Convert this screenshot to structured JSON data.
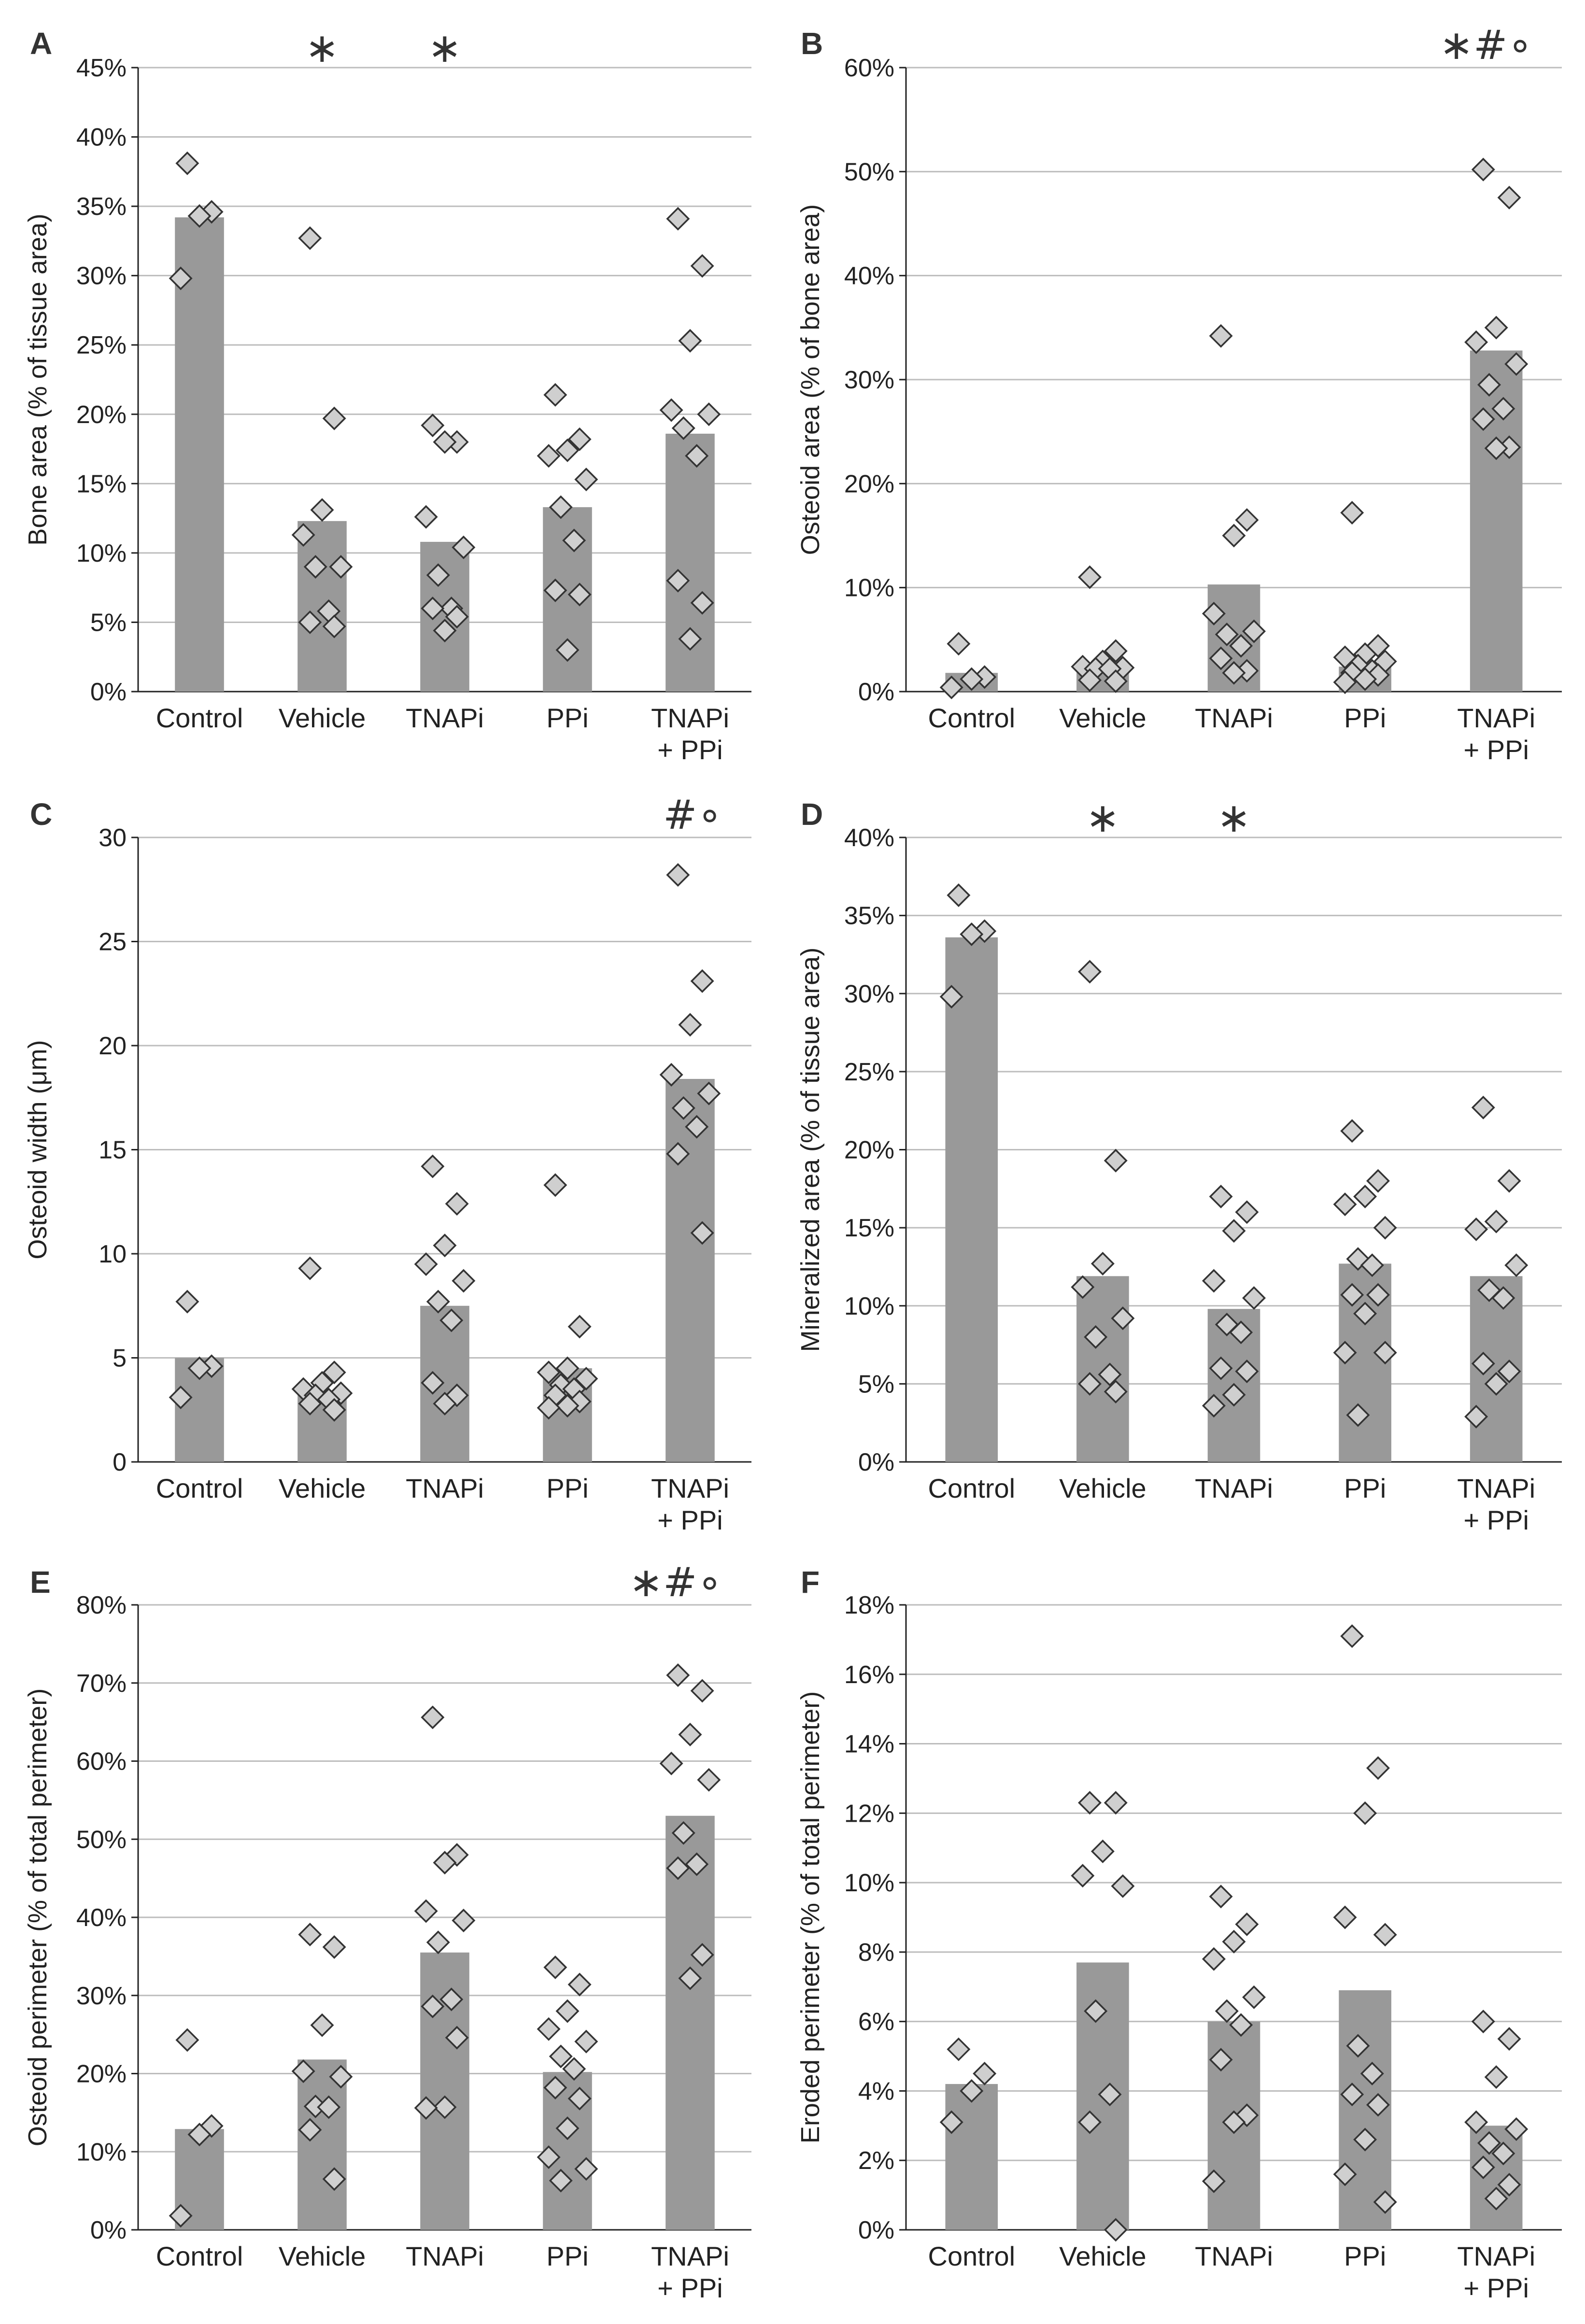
{
  "chart_data": [
    {
      "panel": "A",
      "type": "bar",
      "ylabel": "Bone area (% of tissue area)",
      "ylim": [
        0,
        45
      ],
      "yticks": [
        0,
        5,
        10,
        15,
        20,
        25,
        30,
        35,
        40,
        45
      ],
      "tick_labels": [
        "0%",
        "5%",
        "10%",
        "15%",
        "20%",
        "25%",
        "30%",
        "35%",
        "40%",
        "45%"
      ],
      "grid": true,
      "categories": [
        {
          "name": "Control",
          "mean": 34.2,
          "points": [
            38.1,
            34.6,
            34.3,
            29.8
          ],
          "sig": ""
        },
        {
          "name": "Vehicle",
          "mean": 12.3,
          "points": [
            32.7,
            19.7,
            13.1,
            11.3,
            9.0,
            9.0,
            5.8,
            5.0,
            4.7
          ],
          "sig": "*"
        },
        {
          "name": "TNAPi",
          "mean": 10.8,
          "points": [
            19.2,
            18.0,
            18.0,
            12.6,
            10.4,
            8.4,
            6.0,
            6.0,
            5.4,
            4.4
          ],
          "sig": "*"
        },
        {
          "name": "PPi",
          "mean": 13.3,
          "points": [
            21.4,
            18.2,
            17.4,
            17.0,
            15.3,
            13.3,
            10.9,
            7.3,
            7.0,
            3.0
          ],
          "sig": ""
        },
        {
          "name": "TNAPi\n+ PPi",
          "mean": 18.6,
          "points": [
            34.1,
            30.7,
            25.3,
            20.3,
            20.0,
            19.0,
            17.0,
            8.0,
            6.4,
            3.8
          ],
          "sig": ""
        }
      ],
      "panel_sig": ""
    },
    {
      "panel": "B",
      "type": "bar",
      "ylabel": "Osteoid area (% of bone area)",
      "ylim": [
        0,
        60
      ],
      "yticks": [
        0,
        10,
        20,
        30,
        40,
        50,
        60
      ],
      "tick_labels": [
        "0%",
        "10%",
        "20%",
        "30%",
        "40%",
        "50%",
        "60%"
      ],
      "grid": true,
      "categories": [
        {
          "name": "Control",
          "mean": 1.8,
          "points": [
            4.6,
            1.4,
            1.2,
            0.4
          ],
          "sig": ""
        },
        {
          "name": "Vehicle",
          "mean": 2.4,
          "points": [
            11.0,
            3.9,
            2.9,
            2.4,
            2.3,
            2.2,
            2.2,
            1.1,
            1.0
          ],
          "sig": ""
        },
        {
          "name": "TNAPi",
          "mean": 10.3,
          "points": [
            34.2,
            16.5,
            15.0,
            7.5,
            5.8,
            5.5,
            4.4,
            3.2,
            2.0,
            1.8
          ],
          "sig": ""
        },
        {
          "name": "PPi",
          "mean": 2.4,
          "points": [
            17.2,
            4.4,
            3.6,
            3.3,
            2.9,
            2.5,
            2.0,
            1.8,
            1.6,
            1.2,
            0.9
          ],
          "sig": ""
        },
        {
          "name": "TNAPi\n+ PPi",
          "mean": 32.8,
          "points": [
            50.2,
            47.5,
            35.0,
            33.6,
            31.5,
            29.5,
            27.2,
            26.2,
            23.5,
            23.4
          ],
          "sig": ""
        }
      ],
      "panel_sig": "∗#∘"
    },
    {
      "panel": "C",
      "type": "bar",
      "ylabel": "Osteoid width (μm)",
      "ylim": [
        0,
        30
      ],
      "yticks": [
        0,
        5,
        10,
        15,
        20,
        25,
        30
      ],
      "tick_labels": [
        "0",
        "5",
        "10",
        "15",
        "20",
        "25",
        "30"
      ],
      "grid": true,
      "categories": [
        {
          "name": "Control",
          "mean": 5.0,
          "points": [
            7.7,
            4.6,
            4.5,
            3.1
          ],
          "sig": ""
        },
        {
          "name": "Vehicle",
          "mean": 3.4,
          "points": [
            9.3,
            4.3,
            3.8,
            3.5,
            3.3,
            3.2,
            3.0,
            2.8,
            2.5
          ],
          "sig": ""
        },
        {
          "name": "TNAPi",
          "mean": 7.5,
          "points": [
            14.2,
            12.4,
            10.4,
            9.5,
            8.7,
            7.7,
            6.8,
            3.8,
            3.2,
            2.8
          ],
          "sig": ""
        },
        {
          "name": "PPi",
          "mean": 4.5,
          "points": [
            13.3,
            6.5,
            4.5,
            4.3,
            4.0,
            3.7,
            3.5,
            3.2,
            2.9,
            2.7,
            2.6
          ],
          "sig": ""
        },
        {
          "name": "TNAPi\n+ PPi",
          "mean": 18.4,
          "points": [
            28.2,
            23.1,
            21.0,
            18.6,
            17.7,
            17.0,
            16.1,
            14.8,
            11.0
          ],
          "sig": ""
        }
      ],
      "panel_sig": "#∘"
    },
    {
      "panel": "D",
      "type": "bar",
      "ylabel": "Mineralized area (% of tissue area)",
      "ylim": [
        0,
        40
      ],
      "yticks": [
        0,
        5,
        10,
        15,
        20,
        25,
        30,
        35,
        40
      ],
      "tick_labels": [
        "0%",
        "5%",
        "10%",
        "15%",
        "20%",
        "25%",
        "30%",
        "35%",
        "40%"
      ],
      "grid": true,
      "categories": [
        {
          "name": "Control",
          "mean": 33.6,
          "points": [
            36.3,
            34.0,
            33.8,
            29.8
          ],
          "sig": ""
        },
        {
          "name": "Vehicle",
          "mean": 11.9,
          "points": [
            31.4,
            19.3,
            12.7,
            11.2,
            9.2,
            8.0,
            5.6,
            5.0,
            4.5
          ],
          "sig": "*"
        },
        {
          "name": "TNAPi",
          "mean": 9.8,
          "points": [
            17.0,
            16.0,
            14.8,
            11.6,
            10.5,
            8.8,
            8.3,
            6.0,
            5.8,
            4.3,
            3.6
          ],
          "sig": "*"
        },
        {
          "name": "PPi",
          "mean": 12.7,
          "points": [
            21.2,
            18.0,
            17.0,
            16.5,
            15.0,
            13.0,
            12.6,
            10.7,
            10.7,
            9.5,
            7.0,
            7.0,
            3.0
          ],
          "sig": ""
        },
        {
          "name": "TNAPi\n+ PPi",
          "mean": 11.9,
          "points": [
            22.7,
            18.0,
            15.4,
            14.9,
            12.6,
            11.0,
            10.5,
            6.3,
            5.8,
            5.0,
            2.9
          ],
          "sig": ""
        }
      ],
      "panel_sig": ""
    },
    {
      "panel": "E",
      "type": "bar",
      "ylabel": "Osteoid perimeter (% of total perimeter)",
      "ylim": [
        0,
        80
      ],
      "yticks": [
        0,
        10,
        20,
        30,
        40,
        50,
        60,
        70,
        80
      ],
      "tick_labels": [
        "0%",
        "10%",
        "20%",
        "30%",
        "40%",
        "50%",
        "60%",
        "70%",
        "80%"
      ],
      "grid": true,
      "categories": [
        {
          "name": "Control",
          "mean": 12.9,
          "points": [
            24.3,
            13.3,
            12.2,
            1.8
          ],
          "sig": ""
        },
        {
          "name": "Vehicle",
          "mean": 21.8,
          "points": [
            37.8,
            36.2,
            26.2,
            20.3,
            19.6,
            15.8,
            15.7,
            12.8,
            6.5
          ],
          "sig": ""
        },
        {
          "name": "TNAPi",
          "mean": 35.5,
          "points": [
            65.6,
            48.0,
            47.0,
            40.8,
            39.6,
            36.8,
            29.5,
            28.6,
            24.6,
            15.7,
            15.6
          ],
          "sig": ""
        },
        {
          "name": "PPi",
          "mean": 20.2,
          "points": [
            33.6,
            31.4,
            28.0,
            25.7,
            24.1,
            22.2,
            20.6,
            18.2,
            16.8,
            13.0,
            9.3,
            7.8,
            6.3
          ],
          "sig": ""
        },
        {
          "name": "TNAPi\n+ PPi",
          "mean": 53.0,
          "points": [
            71.0,
            69.0,
            63.4,
            59.7,
            57.6,
            50.8,
            46.8,
            46.3,
            35.2,
            32.2
          ],
          "sig": ""
        }
      ],
      "panel_sig": "∗#∘"
    },
    {
      "panel": "F",
      "type": "bar",
      "ylabel": "Eroded perimeter (% of total perimeter)",
      "ylim": [
        0,
        18
      ],
      "yticks": [
        0,
        2,
        4,
        6,
        8,
        10,
        12,
        14,
        16,
        18
      ],
      "tick_labels": [
        "0%",
        "2%",
        "4%",
        "6%",
        "8%",
        "10%",
        "12%",
        "14%",
        "16%",
        "18%"
      ],
      "grid": true,
      "categories": [
        {
          "name": "Control",
          "mean": 4.2,
          "points": [
            5.2,
            4.5,
            4.0,
            3.1
          ],
          "sig": ""
        },
        {
          "name": "Vehicle",
          "mean": 7.7,
          "points": [
            12.3,
            12.3,
            10.9,
            10.2,
            9.9,
            6.3,
            3.9,
            3.1,
            0.0
          ],
          "sig": ""
        },
        {
          "name": "TNAPi",
          "mean": 6.0,
          "points": [
            9.6,
            8.8,
            8.3,
            7.8,
            6.7,
            6.3,
            5.9,
            4.9,
            3.3,
            3.1,
            1.4
          ],
          "sig": ""
        },
        {
          "name": "PPi",
          "mean": 6.9,
          "points": [
            17.1,
            13.3,
            12.0,
            9.0,
            8.5,
            5.3,
            4.5,
            3.9,
            3.6,
            2.6,
            1.6,
            0.8
          ],
          "sig": ""
        },
        {
          "name": "TNAPi\n+ PPi",
          "mean": 3.0,
          "points": [
            6.0,
            5.5,
            4.4,
            3.1,
            2.9,
            2.5,
            2.2,
            1.8,
            1.3,
            0.9
          ],
          "sig": ""
        }
      ],
      "panel_sig": ""
    }
  ]
}
